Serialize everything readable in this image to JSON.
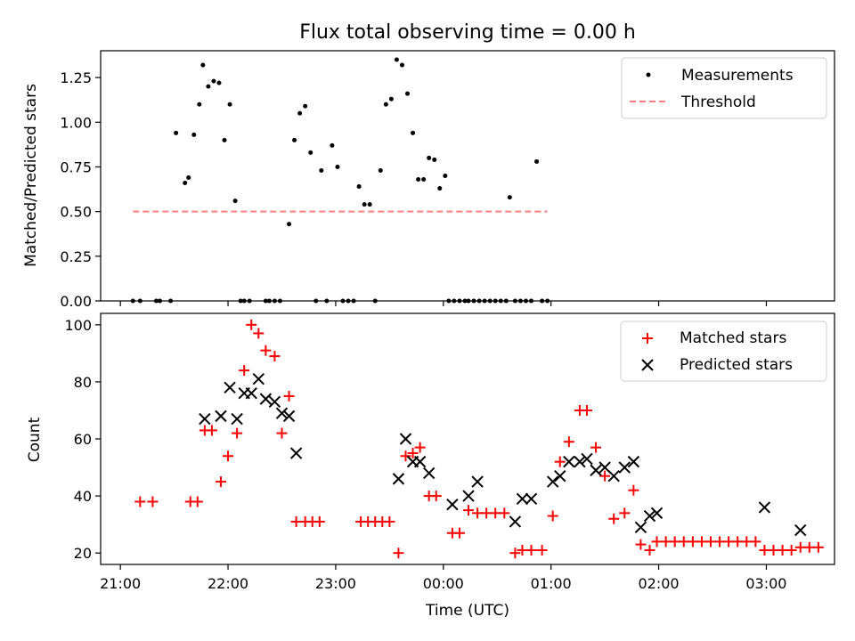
{
  "chart_data": [
    {
      "type": "scatter",
      "title": "Flux total observing time = 0.00 h",
      "xlabel": "",
      "ylabel": "Matched/Predicted stars",
      "xlim": [
        "21:00",
        "03:30"
      ],
      "ylim": [
        0,
        1.4
      ],
      "yticks": [
        "0.00",
        "0.25",
        "0.50",
        "0.75",
        "1.00",
        "1.25"
      ],
      "legend_placement": "top-right",
      "grid": false,
      "series": [
        {
          "name": "Measurements",
          "marker": "dot",
          "color": "#000000",
          "points": [
            [
              "21:07",
              0.0
            ],
            [
              "21:11",
              0.0
            ],
            [
              "21:20",
              0.0
            ],
            [
              "21:22",
              0.0
            ],
            [
              "21:28",
              0.0
            ],
            [
              "21:31",
              0.94
            ],
            [
              "21:36",
              0.66
            ],
            [
              "21:38",
              0.69
            ],
            [
              "21:41",
              0.93
            ],
            [
              "21:44",
              1.1
            ],
            [
              "21:46",
              1.32
            ],
            [
              "21:49",
              1.2
            ],
            [
              "21:52",
              1.23
            ],
            [
              "21:55",
              1.22
            ],
            [
              "21:58",
              0.9
            ],
            [
              "22:01",
              1.1
            ],
            [
              "22:04",
              0.56
            ],
            [
              "22:07",
              0.0
            ],
            [
              "22:09",
              0.0
            ],
            [
              "22:12",
              0.0
            ],
            [
              "22:21",
              0.0
            ],
            [
              "22:23",
              0.0
            ],
            [
              "22:26",
              0.0
            ],
            [
              "22:29",
              0.0
            ],
            [
              "22:34",
              0.43
            ],
            [
              "22:37",
              0.9
            ],
            [
              "22:40",
              1.05
            ],
            [
              "22:43",
              1.09
            ],
            [
              "22:46",
              0.83
            ],
            [
              "22:49",
              0.0
            ],
            [
              "22:52",
              0.73
            ],
            [
              "22:55",
              0.0
            ],
            [
              "22:58",
              0.87
            ],
            [
              "23:01",
              0.75
            ],
            [
              "23:04",
              0.0
            ],
            [
              "23:07",
              0.0
            ],
            [
              "23:10",
              0.0
            ],
            [
              "23:13",
              0.64
            ],
            [
              "23:16",
              0.54
            ],
            [
              "23:19",
              0.54
            ],
            [
              "23:22",
              0.0
            ],
            [
              "23:25",
              0.73
            ],
            [
              "23:28",
              1.1
            ],
            [
              "23:31",
              1.13
            ],
            [
              "23:34",
              1.35
            ],
            [
              "23:37",
              1.32
            ],
            [
              "23:40",
              1.16
            ],
            [
              "23:43",
              0.94
            ],
            [
              "23:46",
              0.68
            ],
            [
              "23:49",
              0.68
            ],
            [
              "23:52",
              0.8
            ],
            [
              "23:55",
              0.79
            ],
            [
              "23:58",
              0.63
            ],
            [
              "00:01",
              0.7
            ],
            [
              "00:03",
              0.0
            ],
            [
              "00:06",
              0.0
            ],
            [
              "00:09",
              0.0
            ],
            [
              "00:12",
              0.0
            ],
            [
              "00:14",
              0.0
            ],
            [
              "00:17",
              0.0
            ],
            [
              "00:20",
              0.0
            ],
            [
              "00:23",
              0.0
            ],
            [
              "00:26",
              0.0
            ],
            [
              "00:29",
              0.0
            ],
            [
              "00:32",
              0.0
            ],
            [
              "00:35",
              0.0
            ],
            [
              "00:37",
              0.58
            ],
            [
              "00:40",
              0.0
            ],
            [
              "00:43",
              0.0
            ],
            [
              "00:46",
              0.0
            ],
            [
              "00:49",
              0.0
            ],
            [
              "00:52",
              0.78
            ],
            [
              "00:55",
              0.0
            ],
            [
              "00:58",
              0.0
            ]
          ]
        },
        {
          "name": "Threshold",
          "marker": "dashed-line",
          "color": "#ff7f7f",
          "points": [
            [
              "21:07",
              0.5
            ],
            [
              "00:58",
              0.5
            ]
          ]
        }
      ]
    },
    {
      "type": "scatter",
      "title": "",
      "xlabel": "Time (UTC)",
      "ylabel": "Count",
      "xlim": [
        "21:00",
        "03:30"
      ],
      "ylim": [
        16,
        104
      ],
      "yticks": [
        "20",
        "40",
        "60",
        "80",
        "100"
      ],
      "xticks": [
        "21:00",
        "22:00",
        "23:00",
        "00:00",
        "01:00",
        "02:00",
        "03:00"
      ],
      "legend_placement": "top-right",
      "grid": false,
      "series": [
        {
          "name": "Matched stars",
          "marker": "plus",
          "color": "#ff0000",
          "points": [
            [
              "21:11",
              38
            ],
            [
              "21:18",
              38
            ],
            [
              "21:39",
              38
            ],
            [
              "21:43",
              38
            ],
            [
              "21:47",
              63
            ],
            [
              "21:51",
              63
            ],
            [
              "21:56",
              45
            ],
            [
              "22:00",
              54
            ],
            [
              "22:05",
              62
            ],
            [
              "22:09",
              84
            ],
            [
              "22:13",
              100
            ],
            [
              "22:17",
              97
            ],
            [
              "22:21",
              91
            ],
            [
              "22:26",
              89
            ],
            [
              "22:30",
              62
            ],
            [
              "22:34",
              75
            ],
            [
              "22:38",
              31
            ],
            [
              "22:43",
              31
            ],
            [
              "22:47",
              31
            ],
            [
              "22:51",
              31
            ],
            [
              "23:14",
              31
            ],
            [
              "23:18",
              31
            ],
            [
              "23:22",
              31
            ],
            [
              "23:26",
              31
            ],
            [
              "23:30",
              31
            ],
            [
              "23:35",
              20
            ],
            [
              "23:39",
              54
            ],
            [
              "23:43",
              55
            ],
            [
              "23:47",
              57
            ],
            [
              "23:52",
              40
            ],
            [
              "23:56",
              40
            ],
            [
              "00:05",
              27
            ],
            [
              "00:09",
              27
            ],
            [
              "00:14",
              35
            ],
            [
              "00:19",
              34
            ],
            [
              "00:24",
              34
            ],
            [
              "00:29",
              34
            ],
            [
              "00:34",
              34
            ],
            [
              "00:40",
              20
            ],
            [
              "00:44",
              21
            ],
            [
              "00:49",
              21
            ],
            [
              "00:55",
              21
            ],
            [
              "01:01",
              33
            ],
            [
              "01:05",
              52
            ],
            [
              "01:10",
              59
            ],
            [
              "01:16",
              70
            ],
            [
              "01:20",
              70
            ],
            [
              "01:25",
              57
            ],
            [
              "01:30",
              47
            ],
            [
              "01:35",
              32
            ],
            [
              "01:41",
              34
            ],
            [
              "01:46",
              42
            ],
            [
              "01:50",
              23
            ],
            [
              "01:55",
              21
            ],
            [
              "01:59",
              24
            ],
            [
              "02:04",
              24
            ],
            [
              "02:09",
              24
            ],
            [
              "02:14",
              24
            ],
            [
              "02:19",
              24
            ],
            [
              "02:24",
              24
            ],
            [
              "02:29",
              24
            ],
            [
              "02:34",
              24
            ],
            [
              "02:39",
              24
            ],
            [
              "02:44",
              24
            ],
            [
              "02:49",
              24
            ],
            [
              "02:54",
              24
            ],
            [
              "02:59",
              21
            ],
            [
              "03:04",
              21
            ],
            [
              "03:09",
              21
            ],
            [
              "03:14",
              21
            ],
            [
              "03:19",
              22
            ],
            [
              "03:24",
              22
            ],
            [
              "03:29",
              22
            ]
          ]
        },
        {
          "name": "Predicted stars",
          "marker": "cross",
          "color": "#000000",
          "points": [
            [
              "21:47",
              67
            ],
            [
              "21:56",
              68
            ],
            [
              "22:01",
              78
            ],
            [
              "22:05",
              67
            ],
            [
              "22:09",
              76
            ],
            [
              "22:13",
              76
            ],
            [
              "22:17",
              81
            ],
            [
              "22:21",
              74
            ],
            [
              "22:26",
              73
            ],
            [
              "22:30",
              69
            ],
            [
              "22:34",
              68
            ],
            [
              "22:38",
              55
            ],
            [
              "23:35",
              46
            ],
            [
              "23:39",
              60
            ],
            [
              "23:43",
              52
            ],
            [
              "23:47",
              52
            ],
            [
              "23:52",
              48
            ],
            [
              "00:05",
              37
            ],
            [
              "00:14",
              40
            ],
            [
              "00:19",
              45
            ],
            [
              "00:40",
              31
            ],
            [
              "00:44",
              39
            ],
            [
              "00:49",
              39
            ],
            [
              "01:01",
              45
            ],
            [
              "01:05",
              47
            ],
            [
              "01:10",
              52
            ],
            [
              "01:16",
              52
            ],
            [
              "01:20",
              53
            ],
            [
              "01:25",
              49
            ],
            [
              "01:30",
              50
            ],
            [
              "01:35",
              47
            ],
            [
              "01:41",
              50
            ],
            [
              "01:46",
              52
            ],
            [
              "01:50",
              29
            ],
            [
              "01:55",
              33
            ],
            [
              "01:59",
              34
            ],
            [
              "02:59",
              36
            ],
            [
              "03:19",
              28
            ]
          ]
        }
      ]
    }
  ]
}
